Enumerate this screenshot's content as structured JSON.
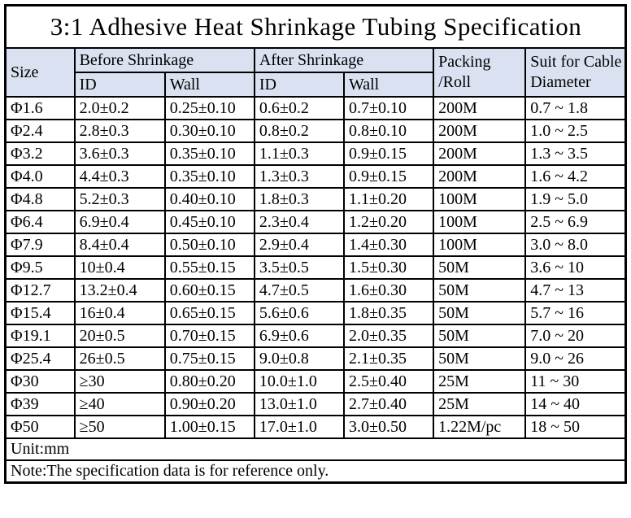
{
  "title": "3:1 Adhesive Heat Shrinkage Tubing Specification",
  "colors": {
    "header_bg": "#dae2f1",
    "border": "#000000",
    "text": "#000000",
    "row_bg": "#ffffff"
  },
  "table": {
    "header": {
      "size": "Size",
      "before_group": "Before Shrinkage",
      "after_group": "After Shrinkage",
      "before_id": "ID",
      "before_wall": "Wall",
      "after_id": "ID",
      "after_wall": "Wall",
      "packing_roll": [
        "Packing",
        "/Roll"
      ],
      "suit": [
        "Suit for Cable",
        "Diameter"
      ]
    },
    "rows": [
      [
        "Φ1.6",
        "2.0±0.2",
        "0.25±0.10",
        "0.6±0.2",
        "0.7±0.10",
        "200M",
        "0.7 ~ 1.8"
      ],
      [
        "Φ2.4",
        "2.8±0.3",
        "0.30±0.10",
        "0.8±0.2",
        "0.8±0.10",
        "200M",
        "1.0 ~ 2.5"
      ],
      [
        "Φ3.2",
        "3.6±0.3",
        "0.35±0.10",
        "1.1±0.3",
        "0.9±0.15",
        "200M",
        "1.3 ~ 3.5"
      ],
      [
        "Φ4.0",
        "4.4±0.3",
        "0.35±0.10",
        "1.3±0.3",
        "0.9±0.15",
        "200M",
        "1.6 ~ 4.2"
      ],
      [
        "Φ4.8",
        "5.2±0.3",
        "0.40±0.10",
        "1.8±0.3",
        "1.1±0.20",
        "100M",
        "1.9 ~ 5.0"
      ],
      [
        "Φ6.4",
        "6.9±0.4",
        "0.45±0.10",
        "2.3±0.4",
        "1.2±0.20",
        "100M",
        "2.5 ~ 6.9"
      ],
      [
        "Φ7.9",
        "8.4±0.4",
        "0.50±0.10",
        "2.9±0.4",
        "1.4±0.30",
        "100M",
        "3.0 ~ 8.0"
      ],
      [
        "Φ9.5",
        "10±0.4",
        "0.55±0.15",
        "3.5±0.5",
        "1.5±0.30",
        "50M",
        "3.6 ~ 10"
      ],
      [
        "Φ12.7",
        "13.2±0.4",
        "0.60±0.15",
        "4.7±0.5",
        "1.6±0.30",
        "50M",
        "4.7 ~ 13"
      ],
      [
        "Φ15.4",
        "16±0.4",
        "0.65±0.15",
        "5.6±0.6",
        "1.8±0.35",
        "50M",
        "5.7 ~ 16"
      ],
      [
        "Φ19.1",
        "20±0.5",
        "0.70±0.15",
        "6.9±0.6",
        "2.0±0.35",
        "50M",
        "7.0 ~ 20"
      ],
      [
        "Φ25.4",
        "26±0.5",
        "0.75±0.15",
        "9.0±0.8",
        "2.1±0.35",
        "50M",
        "9.0 ~ 26"
      ],
      [
        "Φ30",
        "≥30",
        "0.80±0.20",
        "10.0±1.0",
        "2.5±0.40",
        "25M",
        "11 ~ 30"
      ],
      [
        "Φ39",
        "≥40",
        "0.90±0.20",
        "13.0±1.0",
        "2.7±0.40",
        "25M",
        "14 ~ 40"
      ],
      [
        "Φ50",
        "≥50",
        "1.00±0.15",
        "17.0±1.0",
        "3.0±0.50",
        "1.22M/pc",
        "18 ~ 50"
      ]
    ]
  },
  "footer": {
    "unit": "Unit:mm",
    "note": "Note:The specification data is for reference only."
  }
}
